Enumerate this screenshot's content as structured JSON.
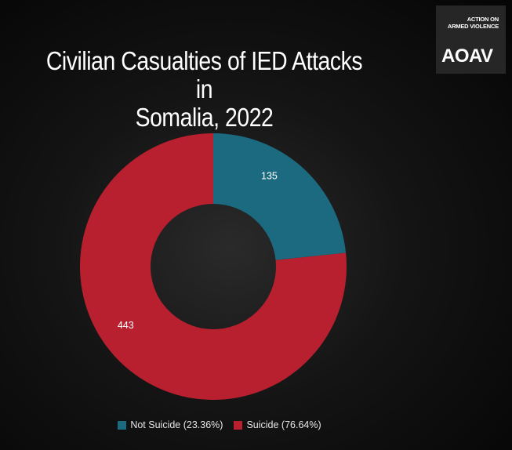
{
  "title_line1": "Civilian Casualties of IED Attacks in",
  "title_line2": "Somalia, 2022",
  "logo": {
    "line1": "ACTION ON",
    "line2": "ARMED VIOLENCE",
    "wordmark": "AOAV"
  },
  "chart_data": {
    "type": "pie",
    "style": "donut",
    "series": [
      {
        "name": "Not Suicide (23.36%)",
        "value": 135,
        "label": "135",
        "color": "#1b6a80"
      },
      {
        "name": "Suicide (76.64%)",
        "value": 443,
        "label": "443",
        "color": "#b81f2f"
      }
    ],
    "legend_position": "bottom"
  }
}
